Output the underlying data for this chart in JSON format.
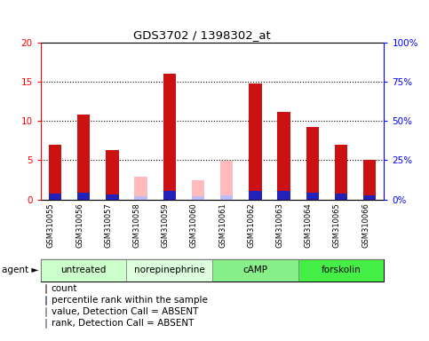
{
  "title": "GDS3702 / 1398302_at",
  "samples": [
    "GSM310055",
    "GSM310056",
    "GSM310057",
    "GSM310058",
    "GSM310059",
    "GSM310060",
    "GSM310061",
    "GSM310062",
    "GSM310063",
    "GSM310064",
    "GSM310065",
    "GSM310066"
  ],
  "count_values": [
    7.0,
    10.8,
    6.3,
    null,
    16.0,
    null,
    null,
    14.8,
    11.2,
    9.3,
    7.0,
    5.1
  ],
  "rank_values": [
    3.5,
    4.5,
    3.2,
    null,
    5.7,
    null,
    null,
    5.7,
    5.3,
    4.2,
    4.0,
    2.8
  ],
  "absent_count_values": [
    null,
    null,
    null,
    2.9,
    null,
    2.5,
    4.9,
    null,
    null,
    null,
    null,
    null
  ],
  "absent_rank_values": [
    null,
    null,
    null,
    2.2,
    null,
    2.2,
    2.7,
    null,
    null,
    null,
    null,
    null
  ],
  "groups": [
    {
      "label": "untreated",
      "indices": [
        0,
        1,
        2
      ],
      "color": "#ccffcc"
    },
    {
      "label": "norepinephrine",
      "indices": [
        3,
        4,
        5
      ],
      "color": "#ddffdd"
    },
    {
      "label": "cAMP",
      "indices": [
        6,
        7,
        8
      ],
      "color": "#88ee88"
    },
    {
      "label": "forskolin",
      "indices": [
        9,
        10,
        11
      ],
      "color": "#44ee44"
    }
  ],
  "ylim_left": [
    0,
    20
  ],
  "ylim_right": [
    0,
    100
  ],
  "yticks_left": [
    0,
    5,
    10,
    15,
    20
  ],
  "yticks_right": [
    0,
    25,
    50,
    75,
    100
  ],
  "count_color": "#cc1111",
  "rank_color": "#2222bb",
  "absent_count_color": "#ffbbbb",
  "absent_rank_color": "#bbbbff",
  "bg_color": "#cccccc",
  "legend_items": [
    {
      "color": "#cc1111",
      "label": "count"
    },
    {
      "color": "#2222bb",
      "label": "percentile rank within the sample"
    },
    {
      "color": "#ffbbbb",
      "label": "value, Detection Call = ABSENT"
    },
    {
      "color": "#bbbbff",
      "label": "rank, Detection Call = ABSENT"
    }
  ],
  "agent_label": "agent ►"
}
